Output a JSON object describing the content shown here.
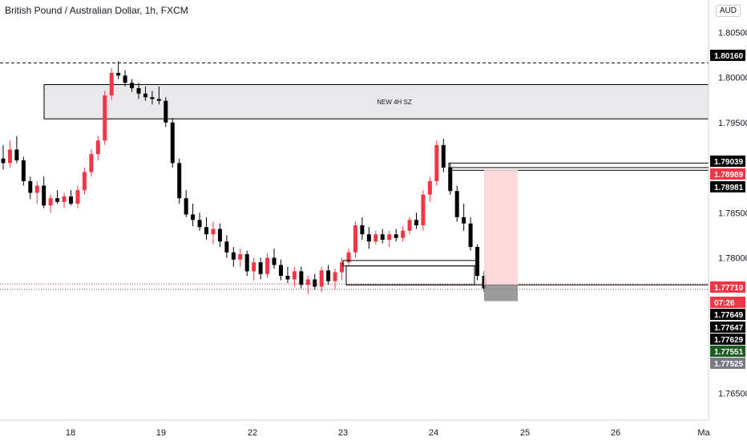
{
  "header": {
    "title": "British Pound / Australian Dollar, 1h, FXCM",
    "currency": "AUD"
  },
  "colors": {
    "up": "#f23645",
    "down": "#000000",
    "zone_fill": "#e9e9ec",
    "target_fill": "#fbd3d6",
    "stop_fill": "#8a8a8a",
    "price_line": "#f23645"
  },
  "chart_data": {
    "type": "candlestick",
    "y_ticks": [
      "1.80500",
      "1.80000",
      "1.79500",
      "1.78500",
      "1.78000",
      "1.76500"
    ],
    "x_ticks": [
      "18",
      "19",
      "22",
      "23",
      "24",
      "25",
      "26",
      "Ma"
    ],
    "zone_label": "NEW 4H SZ",
    "price_tags": [
      {
        "label": "1.80160",
        "price": 1.8016,
        "style": "black"
      },
      {
        "label": "1.79039",
        "price": 1.79039,
        "style": "black"
      },
      {
        "label": "1.78989",
        "price": 1.78989,
        "style": "red"
      },
      {
        "label": "1.78981",
        "price": 1.78981,
        "style": "black"
      },
      {
        "label": "1.77710",
        "price": 1.7771,
        "style": "red"
      },
      {
        "label": "07:26",
        "price": 1.7768,
        "style": "red"
      },
      {
        "label": "1.77649",
        "price": 1.77649,
        "style": "black"
      },
      {
        "label": "1.77647",
        "price": 1.77647,
        "style": "black"
      },
      {
        "label": "1.77629",
        "price": 1.77629,
        "style": "black"
      },
      {
        "label": "1.77551",
        "price": 1.77551,
        "style": "green"
      },
      {
        "label": "1.77525",
        "price": 1.77525,
        "style": "gray"
      }
    ],
    "candles": [
      [
        1.791,
        1.7925,
        1.7898,
        1.7905
      ],
      [
        1.7905,
        1.793,
        1.79,
        1.792
      ],
      [
        1.792,
        1.7935,
        1.7905,
        1.7908
      ],
      [
        1.7908,
        1.7912,
        1.788,
        1.7885
      ],
      [
        1.7885,
        1.789,
        1.7865,
        1.7872
      ],
      [
        1.7872,
        1.7885,
        1.786,
        1.788
      ],
      [
        1.788,
        1.789,
        1.7855,
        1.7858
      ],
      [
        1.7858,
        1.787,
        1.785,
        1.7866
      ],
      [
        1.7866,
        1.7875,
        1.786,
        1.7862
      ],
      [
        1.7862,
        1.7872,
        1.7855,
        1.7868
      ],
      [
        1.7868,
        1.7875,
        1.7858,
        1.786
      ],
      [
        1.786,
        1.788,
        1.7855,
        1.7875
      ],
      [
        1.7875,
        1.79,
        1.787,
        1.7895
      ],
      [
        1.7895,
        1.792,
        1.789,
        1.7915
      ],
      [
        1.7915,
        1.7935,
        1.7908,
        1.793
      ],
      [
        1.793,
        1.7985,
        1.7925,
        1.798
      ],
      [
        1.798,
        1.801,
        1.7975,
        1.8005
      ],
      [
        1.8005,
        1.8018,
        1.7998,
        1.8002
      ],
      [
        1.8002,
        1.8008,
        1.799,
        1.7994
      ],
      [
        1.7994,
        1.7998,
        1.7984,
        1.7988
      ],
      [
        1.7988,
        1.7994,
        1.7976,
        1.7982
      ],
      [
        1.7982,
        1.799,
        1.7974,
        1.7978
      ],
      [
        1.7978,
        1.7985,
        1.797,
        1.7976
      ],
      [
        1.7976,
        1.799,
        1.797,
        1.7974
      ],
      [
        1.7974,
        1.7978,
        1.7945,
        1.795
      ],
      [
        1.795,
        1.7955,
        1.79,
        1.7905
      ],
      [
        1.7905,
        1.791,
        1.786,
        1.7866
      ],
      [
        1.7866,
        1.7875,
        1.7845,
        1.7848
      ],
      [
        1.7848,
        1.786,
        1.7835,
        1.7842
      ],
      [
        1.7842,
        1.785,
        1.783,
        1.7834
      ],
      [
        1.7834,
        1.7845,
        1.782,
        1.7826
      ],
      [
        1.7826,
        1.784,
        1.7815,
        1.7832
      ],
      [
        1.7832,
        1.7838,
        1.7812,
        1.7818
      ],
      [
        1.7818,
        1.7825,
        1.78,
        1.7806
      ],
      [
        1.7806,
        1.7812,
        1.779,
        1.7798
      ],
      [
        1.7798,
        1.781,
        1.779,
        1.7804
      ],
      [
        1.7804,
        1.7808,
        1.778,
        1.7785
      ],
      [
        1.7785,
        1.78,
        1.7775,
        1.7795
      ],
      [
        1.7795,
        1.78,
        1.7776,
        1.7782
      ],
      [
        1.7782,
        1.7805,
        1.7778,
        1.78
      ],
      [
        1.78,
        1.781,
        1.7788,
        1.7792
      ],
      [
        1.7792,
        1.7798,
        1.7775,
        1.778
      ],
      [
        1.778,
        1.779,
        1.7772,
        1.7776
      ],
      [
        1.7776,
        1.779,
        1.7768,
        1.7785
      ],
      [
        1.7785,
        1.779,
        1.7766,
        1.777
      ],
      [
        1.777,
        1.778,
        1.776,
        1.7776
      ],
      [
        1.7776,
        1.7782,
        1.7765,
        1.7768
      ],
      [
        1.7768,
        1.779,
        1.7762,
        1.7786
      ],
      [
        1.7786,
        1.7792,
        1.777,
        1.7774
      ],
      [
        1.7774,
        1.7788,
        1.7765,
        1.7784
      ],
      [
        1.7784,
        1.78,
        1.7775,
        1.7795
      ],
      [
        1.7795,
        1.781,
        1.779,
        1.7806
      ],
      [
        1.7806,
        1.784,
        1.78,
        1.7836
      ],
      [
        1.7836,
        1.7845,
        1.782,
        1.7826
      ],
      [
        1.7826,
        1.7834,
        1.781,
        1.7818
      ],
      [
        1.7818,
        1.783,
        1.7815,
        1.7826
      ],
      [
        1.7826,
        1.7832,
        1.7816,
        1.782
      ],
      [
        1.782,
        1.783,
        1.7812,
        1.7826
      ],
      [
        1.7826,
        1.7832,
        1.7818,
        1.7822
      ],
      [
        1.7822,
        1.7835,
        1.7818,
        1.783
      ],
      [
        1.783,
        1.7845,
        1.7826,
        1.7842
      ],
      [
        1.7842,
        1.785,
        1.7832,
        1.7836
      ],
      [
        1.7836,
        1.7875,
        1.783,
        1.787
      ],
      [
        1.787,
        1.789,
        1.7862,
        1.7885
      ],
      [
        1.7885,
        1.793,
        1.788,
        1.7925
      ],
      [
        1.7925,
        1.7932,
        1.7895,
        1.79
      ],
      [
        1.79,
        1.7905,
        1.787,
        1.7874
      ],
      [
        1.7874,
        1.788,
        1.784,
        1.7845
      ],
      [
        1.7845,
        1.786,
        1.783,
        1.7838
      ],
      [
        1.7838,
        1.7845,
        1.7808,
        1.7812
      ],
      [
        1.7812,
        1.7815,
        1.7775,
        1.778
      ],
      [
        1.778,
        1.7785,
        1.7762,
        1.7766
      ]
    ]
  }
}
